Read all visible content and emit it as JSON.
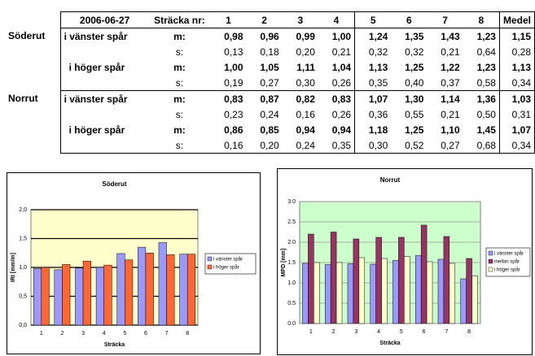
{
  "table": {
    "header": [
      "2006-06-27",
      "Sträcka nr:",
      "1",
      "2",
      "3",
      "4",
      "5",
      "6",
      "7",
      "8",
      "Medel"
    ],
    "rows": [
      {
        "group": "Söderut",
        "track": "i vänster spår",
        "stat": "m:",
        "cells": [
          "0,98",
          "0,96",
          "0,99",
          "1,00",
          "1,24",
          "1,35",
          "1,43",
          "1,23"
        ],
        "mean": "1,15"
      },
      {
        "stat": "s:",
        "cells": [
          "0,13",
          "0,18",
          "0,20",
          "0,21",
          "0,32",
          "0,32",
          "0,21",
          "0,64"
        ],
        "mean": "0,28"
      },
      {
        "track": "i höger spår",
        "stat": "m:",
        "cells": [
          "1,00",
          "1,05",
          "1,11",
          "1,04",
          "1,13",
          "1,25",
          "1,22",
          "1,23"
        ],
        "mean": "1,13"
      },
      {
        "stat": "s:",
        "cells": [
          "0,19",
          "0,27",
          "0,30",
          "0,26",
          "0,35",
          "0,40",
          "0,37",
          "0,58"
        ],
        "mean": "0,34"
      },
      {
        "group": "Norrut",
        "track": "i vänster spår",
        "stat": "m:",
        "cells": [
          "0,83",
          "0,87",
          "0,82",
          "0,83",
          "1,07",
          "1,30",
          "1,14",
          "1,36"
        ],
        "mean": "1,03"
      },
      {
        "stat": "s:",
        "cells": [
          "0,23",
          "0,24",
          "0,16",
          "0,26",
          "0,36",
          "0,55",
          "0,21",
          "0,50"
        ],
        "mean": "0,31"
      },
      {
        "track": "i höger spår",
        "stat": "m:",
        "cells": [
          "0,86",
          "0,85",
          "0,94",
          "0,94",
          "1,18",
          "1,25",
          "1,10",
          "1,45"
        ],
        "mean": "1,07"
      },
      {
        "stat": "s:",
        "cells": [
          "0,16",
          "0,20",
          "0,24",
          "0,35",
          "0,30",
          "0,52",
          "0,27",
          "0,68"
        ],
        "mean": "0,34"
      }
    ]
  },
  "chart_data": [
    {
      "type": "bar",
      "title": "Söderut",
      "x_label": "Sträcka",
      "y_label": "IRI [mm/m]",
      "background": "#ffffcc",
      "grid_color": "#000000",
      "categories": [
        "1",
        "2",
        "3",
        "4",
        "5",
        "6",
        "7",
        "8"
      ],
      "series": [
        {
          "name": "i vänster spår",
          "color": "#9999ff",
          "values": [
            0.98,
            0.96,
            0.99,
            1.0,
            1.24,
            1.35,
            1.43,
            1.23
          ]
        },
        {
          "name": "i höger spår",
          "color": "#ff6633",
          "values": [
            1.0,
            1.05,
            1.11,
            1.04,
            1.13,
            1.25,
            1.22,
            1.23
          ]
        }
      ],
      "ylim": [
        0,
        2
      ],
      "yticks": [
        {
          "value": 0,
          "label": "0,0"
        },
        {
          "value": 0.5,
          "label": "0,5"
        },
        {
          "value": 1,
          "label": "1,0"
        },
        {
          "value": 1.5,
          "label": "1,5"
        },
        {
          "value": 2,
          "label": "2,0"
        }
      ],
      "grid": true
    },
    {
      "type": "bar",
      "title": "Norrut",
      "x_label": "Sträcka",
      "y_label": "MPD [mm]",
      "background": "#ccffcc",
      "grid_color": "#999999",
      "categories": [
        "1",
        "2",
        "3",
        "4",
        "5",
        "6",
        "7",
        "8"
      ],
      "series": [
        {
          "name": "i vänster spår",
          "color": "#9999ff",
          "values": [
            1.48,
            1.45,
            1.47,
            1.46,
            1.55,
            1.67,
            1.58,
            1.1
          ]
        },
        {
          "name": "mellan spår",
          "color": "#993366",
          "values": [
            2.2,
            2.25,
            2.08,
            2.12,
            2.12,
            2.42,
            2.14,
            1.6
          ]
        },
        {
          "name": "i höger spår",
          "color": "#ffffcc",
          "values": [
            1.5,
            1.5,
            1.62,
            1.6,
            1.65,
            1.52,
            1.48,
            1.17
          ]
        }
      ],
      "ylim": [
        0,
        3
      ],
      "yticks": [
        {
          "value": 0,
          "label": "0.0"
        },
        {
          "value": 0.5,
          "label": "0.5"
        },
        {
          "value": 1,
          "label": "1.0"
        },
        {
          "value": 1.5,
          "label": "1.5"
        },
        {
          "value": 2,
          "label": "2.0"
        },
        {
          "value": 2.5,
          "label": "2.5"
        },
        {
          "value": 3,
          "label": "3.0"
        }
      ],
      "grid": true
    }
  ]
}
